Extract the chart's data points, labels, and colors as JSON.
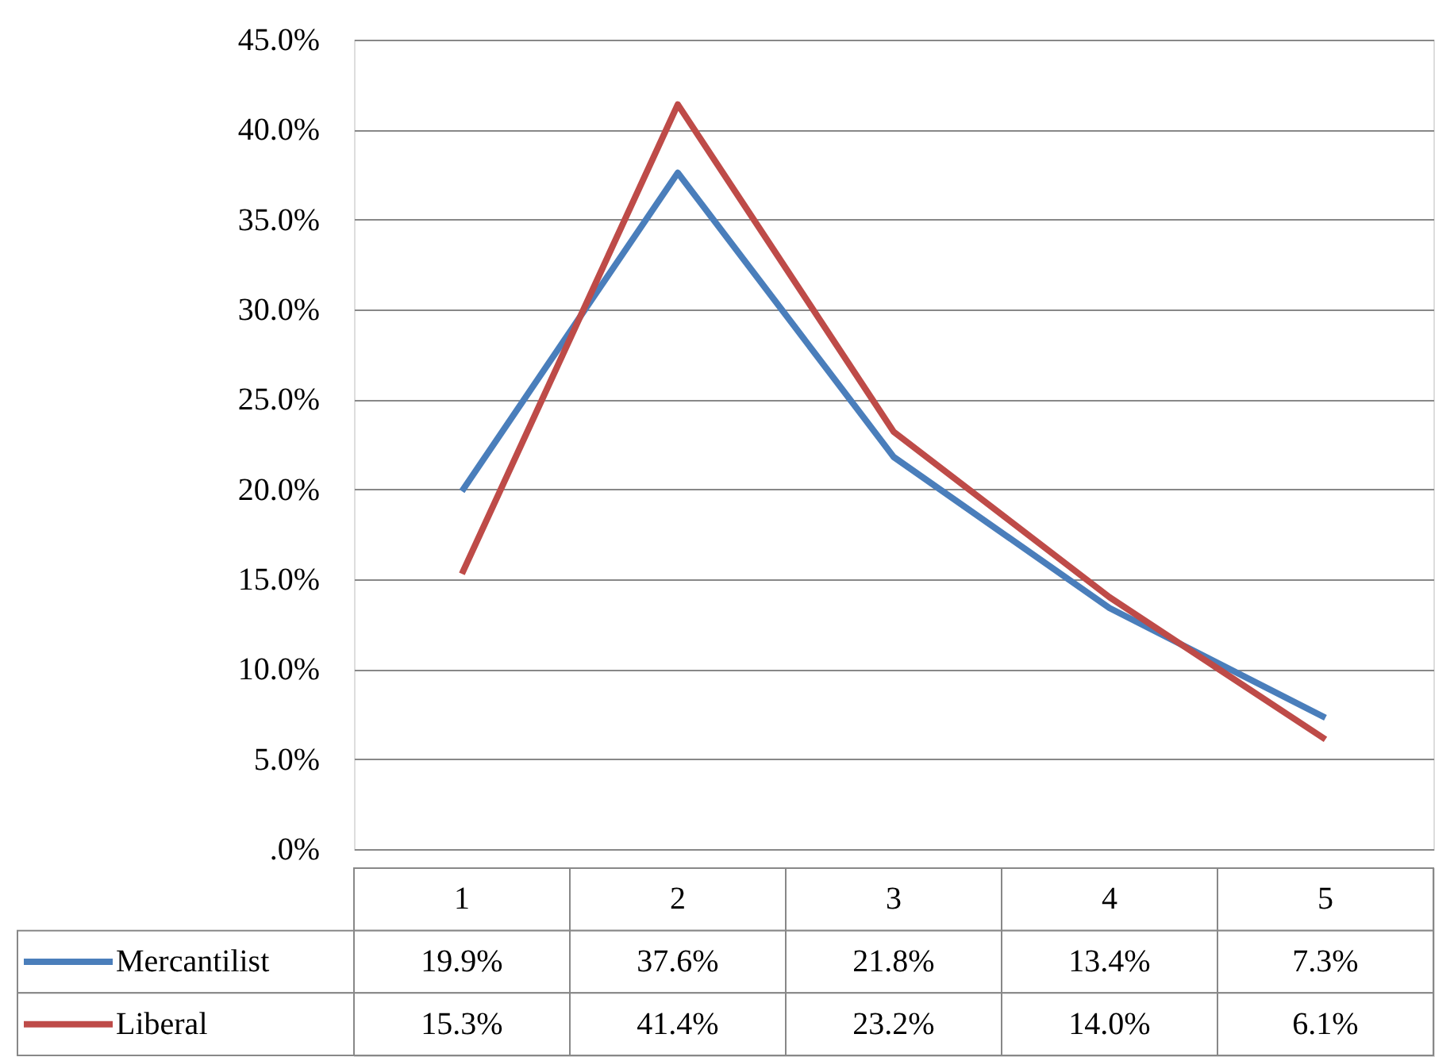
{
  "chart_data": {
    "type": "line",
    "categories": [
      "1",
      "2",
      "3",
      "4",
      "5"
    ],
    "series": [
      {
        "name": "Mercantilist",
        "color": "#4a7ebb",
        "values": [
          19.9,
          37.6,
          21.8,
          13.4,
          7.3
        ],
        "value_labels": [
          "19.9%",
          "37.6%",
          "21.8%",
          "13.4%",
          "7.3%"
        ]
      },
      {
        "name": "Liberal",
        "color": "#be4b48",
        "values": [
          15.3,
          41.4,
          23.2,
          14.0,
          6.1
        ],
        "value_labels": [
          "15.3%",
          "41.4%",
          "23.2%",
          "14.0%",
          "6.1%"
        ]
      }
    ],
    "ylim": [
      0,
      45
    ],
    "yticks": [
      {
        "value": 0,
        "label": ".0%"
      },
      {
        "value": 5,
        "label": "5.0%"
      },
      {
        "value": 10,
        "label": "10.0%"
      },
      {
        "value": 15,
        "label": "15.0%"
      },
      {
        "value": 20,
        "label": "20.0%"
      },
      {
        "value": 25,
        "label": "25.0%"
      },
      {
        "value": 30,
        "label": "30.0%"
      },
      {
        "value": 35,
        "label": "35.0%"
      },
      {
        "value": 40,
        "label": "40.0%"
      },
      {
        "value": 45,
        "label": "45.0%"
      }
    ],
    "grid": "y",
    "legend": "bottom",
    "marker": "none",
    "line_style": "solid"
  }
}
